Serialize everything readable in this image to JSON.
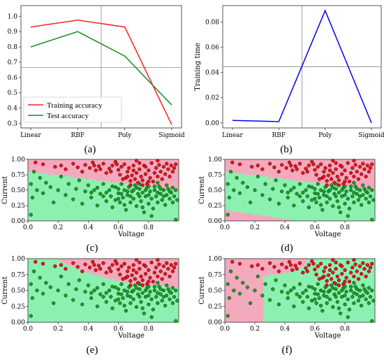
{
  "chart_data": [
    {
      "type": "line",
      "label": "(a)",
      "categories": [
        "Linear",
        "RBF",
        "Poly",
        "Sigmoid"
      ],
      "series": [
        {
          "name": "Training accuracy",
          "color": "#ff2020",
          "values": [
            0.93,
            0.975,
            0.93,
            0.29
          ]
        },
        {
          "name": "Test accuracy",
          "color": "#1a8c1a",
          "values": [
            0.8,
            0.9,
            0.74,
            0.42
          ]
        }
      ],
      "ylim": [
        0.27,
        1.07
      ],
      "yticks": [
        "0.3",
        "0.4",
        "0.5",
        "0.6",
        "0.7",
        "0.8",
        "0.9",
        "1.0"
      ],
      "ytick_values": [
        0.3,
        0.4,
        0.5,
        0.6,
        0.7,
        0.8,
        0.9,
        1.0
      ],
      "crosshair": {
        "x_index": 1.5,
        "y": 0.665
      },
      "legend": "lower-left"
    },
    {
      "type": "line",
      "label": "(b)",
      "categories": [
        "Linear",
        "RBF",
        "Poly",
        "Sigmoid"
      ],
      "ylabel": "Training time",
      "series": [
        {
          "color": "#0000ee",
          "values": [
            0.002,
            0.001,
            0.089,
            0.0
          ]
        }
      ],
      "ylim": [
        -0.004,
        0.093
      ],
      "yticks": [
        "0.00",
        "0.02",
        "0.04",
        "0.06",
        "0.08"
      ],
      "ytick_values": [
        0.0,
        0.02,
        0.04,
        0.06,
        0.08
      ],
      "crosshair": {
        "x_index": 1.5,
        "y": 0.0445
      }
    },
    {
      "type": "scatter",
      "label": "(c)",
      "boundary": "linear",
      "xlabel": "Voltage",
      "ylabel": "Current",
      "xlim": [
        0,
        1
      ],
      "ylim": [
        0,
        1
      ],
      "xticks": [
        "0.0",
        "0.2",
        "0.4",
        "0.6",
        "0.8"
      ],
      "xtick_values": [
        0,
        0.2,
        0.4,
        0.6,
        0.8
      ],
      "yticks": [
        "0.00",
        "0.25",
        "0.50",
        "0.75",
        "1.00"
      ],
      "ytick_values": [
        0,
        0.25,
        0.5,
        0.75,
        1.0
      ]
    },
    {
      "type": "scatter",
      "label": "(d)",
      "boundary": "rbf",
      "xlabel": "Voltage",
      "ylabel": "Current",
      "xlim": [
        0,
        1
      ],
      "ylim": [
        0,
        1
      ],
      "xticks": [
        "0.0",
        "0.2",
        "0.4",
        "0.6",
        "0.8"
      ],
      "xtick_values": [
        0,
        0.2,
        0.4,
        0.6,
        0.8
      ],
      "yticks": [
        "0.00",
        "0.25",
        "0.50",
        "0.75",
        "1.00"
      ],
      "ytick_values": [
        0,
        0.25,
        0.5,
        0.75,
        1.0
      ]
    },
    {
      "type": "scatter",
      "label": "(e)",
      "boundary": "poly",
      "xlabel": "Voltage",
      "ylabel": "Current",
      "xlim": [
        0,
        1
      ],
      "ylim": [
        0,
        1
      ],
      "xticks": [
        "0.0",
        "0.2",
        "0.4",
        "0.6",
        "0.8"
      ],
      "xtick_values": [
        0,
        0.2,
        0.4,
        0.6,
        0.8
      ],
      "yticks": [
        "0.00",
        "0.25",
        "0.50",
        "0.75",
        "1.00"
      ],
      "ytick_values": [
        0,
        0.25,
        0.5,
        0.75,
        1.0
      ]
    },
    {
      "type": "scatter",
      "label": "(f)",
      "boundary": "sigmoid",
      "xlabel": "Voltage",
      "ylabel": "Current",
      "xlim": [
        0,
        1
      ],
      "ylim": [
        0,
        1
      ],
      "xticks": [
        "0.0",
        "0.2",
        "0.4",
        "0.6",
        "0.8"
      ],
      "xtick_values": [
        0,
        0.2,
        0.4,
        0.6,
        0.8
      ],
      "yticks": [
        "0.00",
        "0.25",
        "0.50",
        "0.75",
        "1.00"
      ],
      "ytick_values": [
        0,
        0.25,
        0.5,
        0.75,
        1.0
      ]
    }
  ],
  "scatter_points": {
    "red_class_color": "#e8141e",
    "green_class_color": "#1a9e2a",
    "red_region_color": "#f4a9bd",
    "green_region_color": "#8cf0b0",
    "red": [
      [
        0.05,
        0.95
      ],
      [
        0.1,
        0.92
      ],
      [
        0.18,
        0.88
      ],
      [
        0.22,
        0.9
      ],
      [
        0.25,
        0.84
      ],
      [
        0.3,
        0.93
      ],
      [
        0.33,
        0.87
      ],
      [
        0.36,
        0.8
      ],
      [
        0.38,
        0.91
      ],
      [
        0.41,
        0.86
      ],
      [
        0.43,
        0.95
      ],
      [
        0.45,
        0.82
      ],
      [
        0.47,
        0.89
      ],
      [
        0.5,
        0.93
      ],
      [
        0.52,
        0.78
      ],
      [
        0.54,
        0.85
      ],
      [
        0.56,
        0.9
      ],
      [
        0.58,
        0.96
      ],
      [
        0.6,
        0.83
      ],
      [
        0.61,
        0.75
      ],
      [
        0.62,
        0.88
      ],
      [
        0.64,
        0.92
      ],
      [
        0.65,
        0.7
      ],
      [
        0.66,
        0.8
      ],
      [
        0.67,
        0.86
      ],
      [
        0.68,
        0.65
      ],
      [
        0.69,
        0.74
      ],
      [
        0.7,
        0.9
      ],
      [
        0.71,
        0.68
      ],
      [
        0.72,
        0.78
      ],
      [
        0.73,
        0.62
      ],
      [
        0.74,
        0.84
      ],
      [
        0.75,
        0.72
      ],
      [
        0.76,
        0.66
      ],
      [
        0.77,
        0.9
      ],
      [
        0.78,
        0.76
      ],
      [
        0.79,
        0.6
      ],
      [
        0.8,
        0.82
      ],
      [
        0.81,
        0.7
      ],
      [
        0.82,
        0.94
      ],
      [
        0.83,
        0.64
      ],
      [
        0.84,
        0.78
      ],
      [
        0.85,
        0.86
      ],
      [
        0.86,
        0.72
      ],
      [
        0.87,
        0.91
      ],
      [
        0.88,
        0.8
      ],
      [
        0.89,
        0.68
      ],
      [
        0.9,
        0.88
      ],
      [
        0.91,
        0.76
      ],
      [
        0.92,
        0.93
      ],
      [
        0.93,
        0.84
      ],
      [
        0.94,
        0.72
      ],
      [
        0.95,
        0.9
      ],
      [
        0.96,
        0.8
      ],
      [
        0.97,
        0.86
      ],
      [
        0.98,
        0.92
      ],
      [
        0.7,
        0.82
      ],
      [
        0.66,
        0.72
      ],
      [
        0.74,
        0.94
      ],
      [
        0.78,
        0.88
      ],
      [
        0.63,
        0.68
      ],
      [
        0.59,
        0.92
      ],
      [
        0.55,
        0.8
      ],
      [
        0.48,
        0.84
      ],
      [
        0.44,
        0.9
      ],
      [
        0.86,
        0.98
      ],
      [
        0.72,
        0.98
      ],
      [
        0.8,
        0.64
      ],
      [
        0.68,
        0.58
      ],
      [
        0.76,
        0.58
      ]
    ],
    "green": [
      [
        0.02,
        0.6
      ],
      [
        0.03,
        0.38
      ],
      [
        0.04,
        0.8
      ],
      [
        0.06,
        0.5
      ],
      [
        0.08,
        0.7
      ],
      [
        0.1,
        0.45
      ],
      [
        0.12,
        0.62
      ],
      [
        0.15,
        0.55
      ],
      [
        0.17,
        0.3
      ],
      [
        0.2,
        0.5
      ],
      [
        0.22,
        0.72
      ],
      [
        0.25,
        0.42
      ],
      [
        0.27,
        0.6
      ],
      [
        0.3,
        0.35
      ],
      [
        0.32,
        0.52
      ],
      [
        0.34,
        0.66
      ],
      [
        0.36,
        0.28
      ],
      [
        0.38,
        0.48
      ],
      [
        0.4,
        0.58
      ],
      [
        0.42,
        0.38
      ],
      [
        0.44,
        0.5
      ],
      [
        0.46,
        0.25
      ],
      [
        0.48,
        0.44
      ],
      [
        0.5,
        0.6
      ],
      [
        0.52,
        0.32
      ],
      [
        0.54,
        0.5
      ],
      [
        0.55,
        0.4
      ],
      [
        0.56,
        0.22
      ],
      [
        0.58,
        0.55
      ],
      [
        0.6,
        0.45
      ],
      [
        0.61,
        0.3
      ],
      [
        0.62,
        0.6
      ],
      [
        0.63,
        0.38
      ],
      [
        0.64,
        0.5
      ],
      [
        0.65,
        0.18
      ],
      [
        0.66,
        0.42
      ],
      [
        0.67,
        0.55
      ],
      [
        0.68,
        0.3
      ],
      [
        0.69,
        0.48
      ],
      [
        0.7,
        0.36
      ],
      [
        0.71,
        0.58
      ],
      [
        0.72,
        0.24
      ],
      [
        0.73,
        0.44
      ],
      [
        0.74,
        0.52
      ],
      [
        0.75,
        0.32
      ],
      [
        0.76,
        0.46
      ],
      [
        0.77,
        0.14
      ],
      [
        0.78,
        0.4
      ],
      [
        0.79,
        0.54
      ],
      [
        0.8,
        0.28
      ],
      [
        0.81,
        0.48
      ],
      [
        0.82,
        0.36
      ],
      [
        0.83,
        0.2
      ],
      [
        0.84,
        0.5
      ],
      [
        0.85,
        0.4
      ],
      [
        0.86,
        0.3
      ],
      [
        0.87,
        0.56
      ],
      [
        0.88,
        0.44
      ],
      [
        0.89,
        0.34
      ],
      [
        0.9,
        0.5
      ],
      [
        0.91,
        0.26
      ],
      [
        0.92,
        0.42
      ],
      [
        0.93,
        0.52
      ],
      [
        0.94,
        0.36
      ],
      [
        0.95,
        0.46
      ],
      [
        0.96,
        0.3
      ],
      [
        0.97,
        0.4
      ],
      [
        0.98,
        0.5
      ],
      [
        0.99,
        0.34
      ],
      [
        0.6,
        0.52
      ],
      [
        0.7,
        0.5
      ],
      [
        0.74,
        0.4
      ],
      [
        0.8,
        0.42
      ],
      [
        0.86,
        0.46
      ],
      [
        0.9,
        0.4
      ],
      [
        0.66,
        0.48
      ],
      [
        0.52,
        0.46
      ],
      [
        0.46,
        0.54
      ],
      [
        0.72,
        0.54
      ],
      [
        0.78,
        0.5
      ],
      [
        0.84,
        0.56
      ],
      [
        0.88,
        0.52
      ],
      [
        0.94,
        0.48
      ],
      [
        0.62,
        0.44
      ],
      [
        0.56,
        0.56
      ],
      [
        0.98,
        0.02
      ],
      [
        0.82,
        0.08
      ],
      [
        0.76,
        0.22
      ],
      [
        0.64,
        0.26
      ],
      [
        0.58,
        0.34
      ],
      [
        0.5,
        0.4
      ],
      [
        0.42,
        0.46
      ],
      [
        0.68,
        0.4
      ],
      [
        0.96,
        0.54
      ],
      [
        0.92,
        0.58
      ],
      [
        0.86,
        0.62
      ],
      [
        0.8,
        0.56
      ],
      [
        0.74,
        0.6
      ],
      [
        0.02,
        0.1
      ],
      [
        0.6,
        0.36
      ]
    ]
  }
}
